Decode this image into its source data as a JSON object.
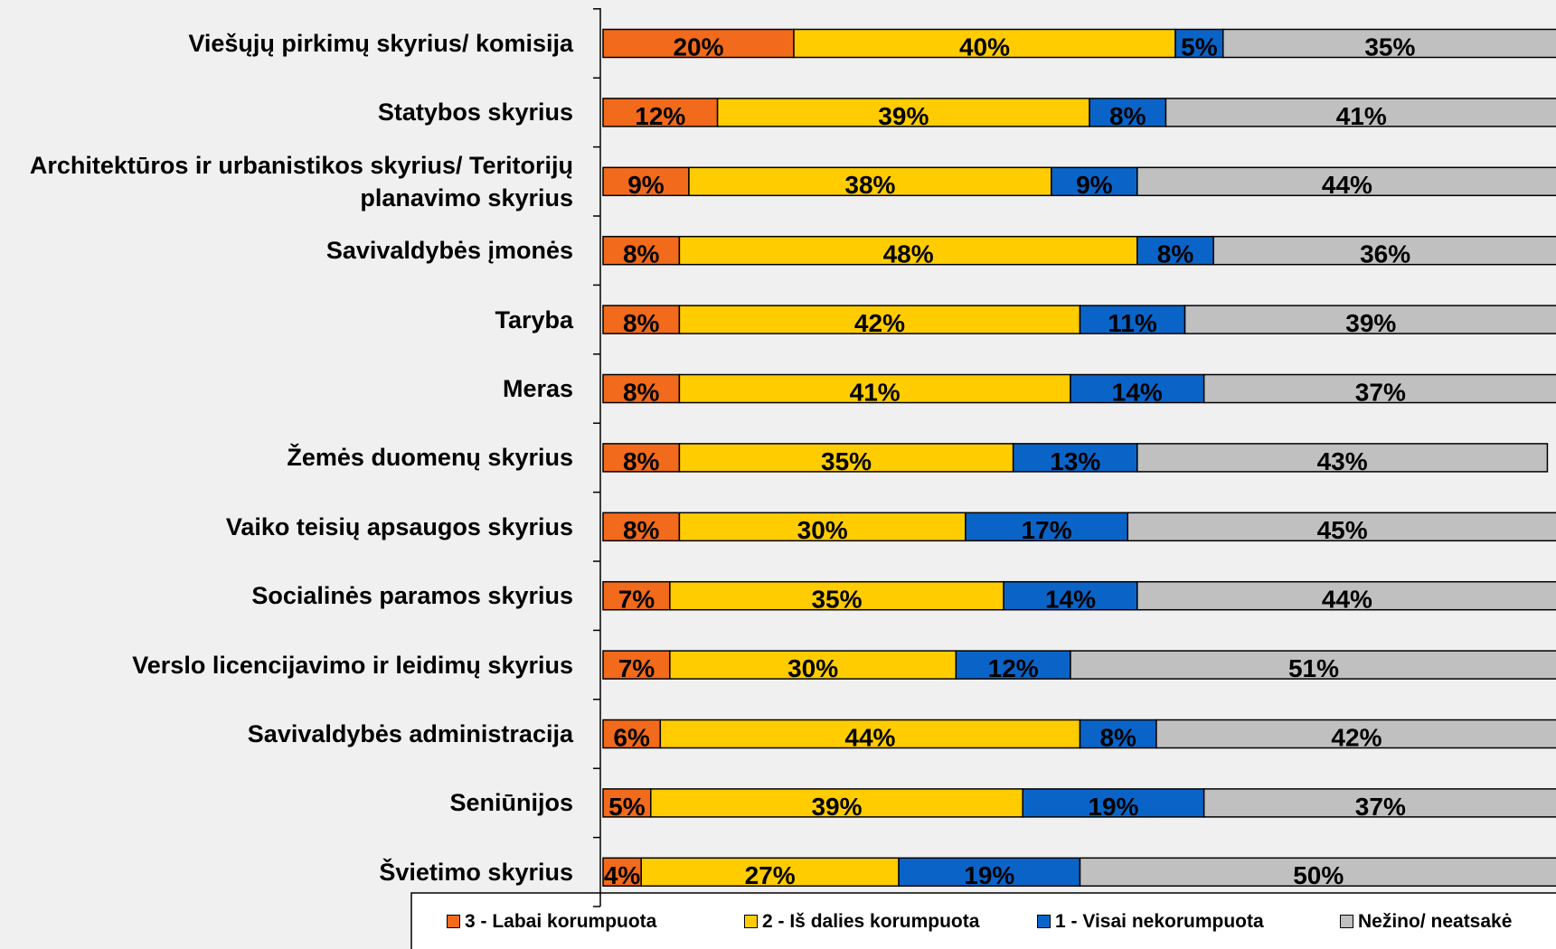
{
  "chart_data": {
    "type": "stacked-bar-horizontal",
    "categories": [
      "Viešųjų pirkimų skyrius/ komisija",
      "Statybos skyrius",
      "Architektūros ir urbanistikos skyrius/ Teritorijų planavimo skyrius",
      "Savivaldybės įmonės",
      "Taryba",
      "Meras",
      "Žemės duomenų skyrius",
      "Vaiko teisių apsaugos skyrius",
      "Socialinės paramos skyrius",
      "Verslo licencijavimo ir leidimų skyrius",
      "Savivaldybės administracija",
      "Seniūnijos",
      "Švietimo skyrius"
    ],
    "series": [
      {
        "name": "3 - Labai korumpuota",
        "color": "#f26a1b",
        "values": [
          20,
          12,
          9,
          8,
          8,
          8,
          8,
          8,
          7,
          7,
          6,
          5,
          4
        ],
        "value_labels": [
          "20%",
          "12%",
          "9%",
          "8%",
          "8%",
          "8%",
          "8%",
          "8%",
          "7%",
          "7%",
          "6%",
          "5%",
          "4%"
        ]
      },
      {
        "name": "2 - Iš dalies korumpuota",
        "color": "#ffcc00",
        "values": [
          40,
          39,
          38,
          48,
          42,
          41,
          35,
          30,
          35,
          30,
          44,
          39,
          27
        ],
        "value_labels": [
          "40%",
          "39%",
          "38%",
          "48%",
          "42%",
          "41%",
          "35%",
          "30%",
          "35%",
          "30%",
          "44%",
          "39%",
          "27%"
        ]
      },
      {
        "name": "1 - Visai nekorumpuota",
        "color": "#0a64c8",
        "values": [
          5,
          8,
          9,
          8,
          11,
          14,
          13,
          17,
          14,
          12,
          8,
          19,
          19
        ],
        "value_labels": [
          "5%",
          "8%",
          "9%",
          "8%",
          "11%",
          "14%",
          "13%",
          "17%",
          "14%",
          "12%",
          "8%",
          "19%",
          "19%"
        ]
      },
      {
        "name": "Nežino/ neatsakė",
        "color": "#c0c0c0",
        "values": [
          35,
          41,
          44,
          36,
          39,
          37,
          43,
          45,
          44,
          51,
          42,
          37,
          50
        ],
        "value_labels": [
          "35%",
          "41%",
          "44%",
          "36%",
          "39%",
          "37%",
          "43%",
          "45%",
          "44%",
          "51%",
          "42%",
          "37%",
          "50%"
        ]
      }
    ],
    "xlim": [
      0,
      100
    ],
    "legend": "bottom"
  }
}
